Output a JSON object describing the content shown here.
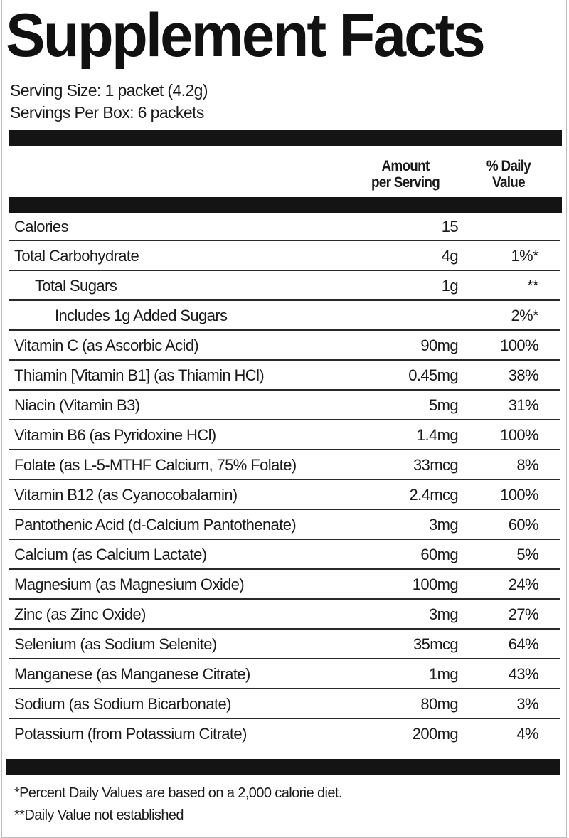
{
  "title": "Supplement Facts",
  "serving_size": "Serving Size: 1 packet (4.2g)",
  "servings_per_box": "Servings Per Box: 6 packets",
  "header": {
    "amount_line1": "Amount",
    "amount_line2": "per Serving",
    "dv_line1": "% Daily",
    "dv_line2": "Value"
  },
  "rows": [
    {
      "name": "Calories",
      "amount": "15",
      "dv": "",
      "indent": 0
    },
    {
      "name": "Total Carbohydrate",
      "amount": "4g",
      "dv": "1%*",
      "indent": 0
    },
    {
      "name": "Total Sugars",
      "amount": "1g",
      "dv": "**",
      "indent": 1
    },
    {
      "name": "Includes 1g Added Sugars",
      "amount": "",
      "dv": "2%*",
      "indent": 2
    },
    {
      "name": "Vitamin C (as Ascorbic Acid)",
      "amount": "90mg",
      "dv": "100%",
      "indent": 0
    },
    {
      "name": "Thiamin [Vitamin B1] (as Thiamin HCl)",
      "amount": "0.45mg",
      "dv": "38%",
      "indent": 0
    },
    {
      "name": "Niacin (Vitamin B3)",
      "amount": "5mg",
      "dv": "31%",
      "indent": 0
    },
    {
      "name": "Vitamin B6 (as Pyridoxine HCl)",
      "amount": "1.4mg",
      "dv": "100%",
      "indent": 0
    },
    {
      "name": "Folate (as L-5-MTHF Calcium, 75% Folate)",
      "amount": "33mcg",
      "dv": "8%",
      "indent": 0
    },
    {
      "name": "Vitamin B12 (as Cyanocobalamin)",
      "amount": "2.4mcg",
      "dv": "100%",
      "indent": 0
    },
    {
      "name": "Pantothenic Acid (d-Calcium Pantothenate)",
      "amount": "3mg",
      "dv": "60%",
      "indent": 0
    },
    {
      "name": "Calcium (as Calcium Lactate)",
      "amount": "60mg",
      "dv": "5%",
      "indent": 0
    },
    {
      "name": "Magnesium (as Magnesium Oxide)",
      "amount": "100mg",
      "dv": "24%",
      "indent": 0
    },
    {
      "name": "Zinc (as Zinc Oxide)",
      "amount": "3mg",
      "dv": "27%",
      "indent": 0
    },
    {
      "name": "Selenium (as Sodium Selenite)",
      "amount": "35mcg",
      "dv": "64%",
      "indent": 0
    },
    {
      "name": "Manganese (as Manganese Citrate)",
      "amount": "1mg",
      "dv": "43%",
      "indent": 0
    },
    {
      "name": "Sodium (as Sodium Bicarbonate)",
      "amount": "80mg",
      "dv": "3%",
      "indent": 0
    },
    {
      "name": "Potassium (from Potassium Citrate)",
      "amount": "200mg",
      "dv": "4%",
      "indent": 0
    }
  ],
  "footnotes": [
    "*Percent Daily Values are based on a 2,000 calorie diet.",
    "**Daily Value not established"
  ]
}
